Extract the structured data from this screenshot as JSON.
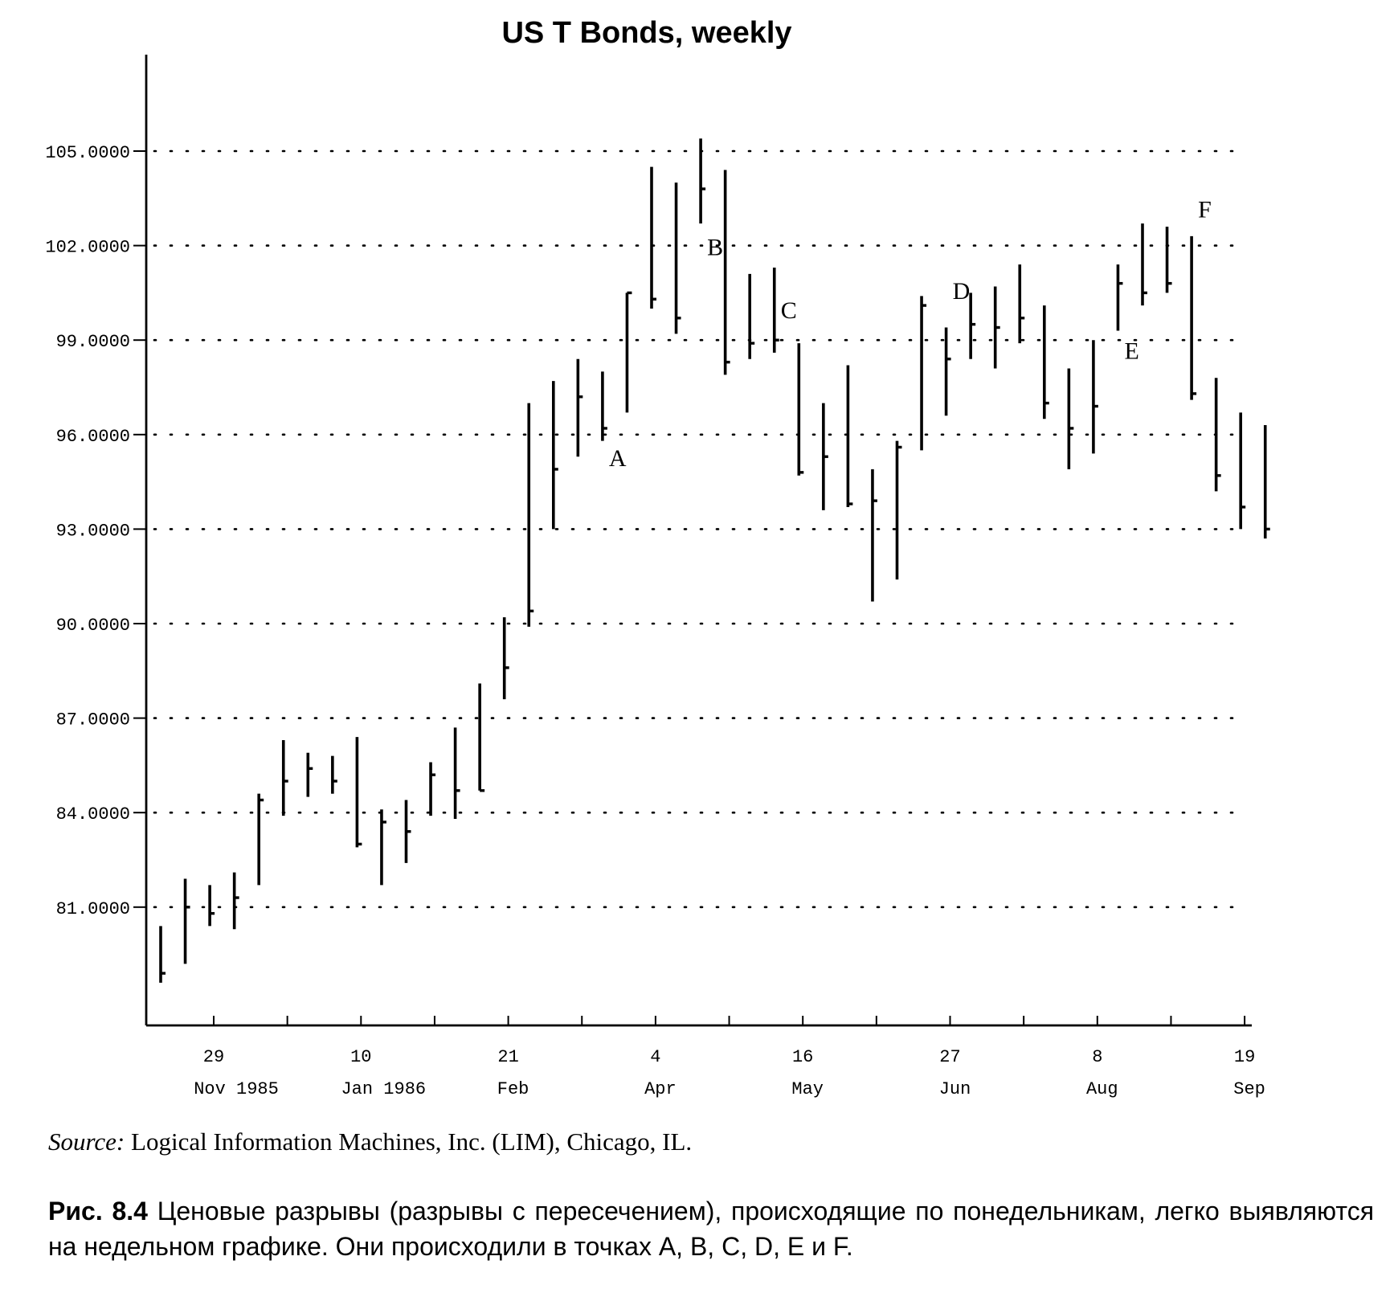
{
  "chart_data": {
    "type": "ohlc",
    "title": "US T Bonds, weekly",
    "ylim": [
      77.0,
      108.0
    ],
    "y_ticks": [
      81,
      84,
      87,
      90,
      93,
      96,
      99,
      102,
      105
    ],
    "y_tick_labels": [
      "81.0000",
      "84.0000",
      "87.0000",
      "90.0000",
      "93.0000",
      "96.0000",
      "99.0000",
      "102.0000",
      "105.0000"
    ],
    "x_tick_labels": [
      {
        "day": "29",
        "month": "Nov 1985"
      },
      {
        "day": "10",
        "month": "Jan 1986"
      },
      {
        "day": "21",
        "month": "Feb"
      },
      {
        "day": "4",
        "month": "Apr"
      },
      {
        "day": "16",
        "month": "May"
      },
      {
        "day": "27",
        "month": "Jun"
      },
      {
        "day": "8",
        "month": "Aug"
      },
      {
        "day": "19",
        "month": "Sep"
      }
    ],
    "grid": "horizontal dotted",
    "bars": [
      {
        "high": 80.4,
        "low": 78.6,
        "close": 78.9
      },
      {
        "high": 81.9,
        "low": 79.2,
        "close": 81.0
      },
      {
        "high": 81.7,
        "low": 80.4,
        "close": 80.8
      },
      {
        "high": 82.1,
        "low": 80.3,
        "close": 81.3
      },
      {
        "high": 84.6,
        "low": 81.7,
        "close": 84.4
      },
      {
        "high": 86.3,
        "low": 83.9,
        "close": 85.0
      },
      {
        "high": 85.9,
        "low": 84.5,
        "close": 85.4
      },
      {
        "high": 85.8,
        "low": 84.6,
        "close": 85.0
      },
      {
        "high": 86.4,
        "low": 82.9,
        "close": 83.0
      },
      {
        "high": 84.1,
        "low": 81.7,
        "close": 83.7
      },
      {
        "high": 84.4,
        "low": 82.4,
        "close": 83.4
      },
      {
        "high": 85.6,
        "low": 83.9,
        "close": 85.2
      },
      {
        "high": 86.7,
        "low": 83.8,
        "close": 84.7
      },
      {
        "high": 88.1,
        "low": 84.7,
        "close": 84.7
      },
      {
        "high": 90.2,
        "low": 87.6,
        "close": 88.6
      },
      {
        "high": 97.0,
        "low": 89.9,
        "close": 90.4
      },
      {
        "high": 97.7,
        "low": 93.0,
        "close": 94.9
      },
      {
        "high": 98.4,
        "low": 95.3,
        "close": 97.2
      },
      {
        "high": 98.0,
        "low": 95.8,
        "close": 96.2
      },
      {
        "high": 100.5,
        "low": 96.7,
        "close": 100.5
      },
      {
        "high": 104.5,
        "low": 100.0,
        "close": 100.3
      },
      {
        "high": 104.0,
        "low": 99.2,
        "close": 99.7
      },
      {
        "high": 105.4,
        "low": 102.7,
        "close": 103.8
      },
      {
        "high": 104.4,
        "low": 97.9,
        "close": 98.3
      },
      {
        "high": 101.1,
        "low": 98.4,
        "close": 98.9
      },
      {
        "high": 101.3,
        "low": 98.6,
        "close": 99.0
      },
      {
        "high": 98.9,
        "low": 94.7,
        "close": 94.8
      },
      {
        "high": 97.0,
        "low": 93.6,
        "close": 95.3
      },
      {
        "high": 98.2,
        "low": 93.7,
        "close": 93.8
      },
      {
        "high": 94.9,
        "low": 90.7,
        "close": 93.9
      },
      {
        "high": 95.8,
        "low": 91.4,
        "close": 95.6
      },
      {
        "high": 100.4,
        "low": 95.5,
        "close": 100.1
      },
      {
        "high": 99.4,
        "low": 96.6,
        "close": 98.4
      },
      {
        "high": 100.5,
        "low": 98.4,
        "close": 99.5
      },
      {
        "high": 100.7,
        "low": 98.1,
        "close": 99.4
      },
      {
        "high": 101.4,
        "low": 98.9,
        "close": 99.7
      },
      {
        "high": 100.1,
        "low": 96.5,
        "close": 97.0
      },
      {
        "high": 98.1,
        "low": 94.9,
        "close": 96.2
      },
      {
        "high": 99.0,
        "low": 95.4,
        "close": 96.9
      },
      {
        "high": 101.4,
        "low": 99.3,
        "close": 100.8
      },
      {
        "high": 102.7,
        "low": 100.1,
        "close": 100.5
      },
      {
        "high": 102.6,
        "low": 100.5,
        "close": 100.8
      },
      {
        "high": 102.3,
        "low": 97.1,
        "close": 97.3
      },
      {
        "high": 97.8,
        "low": 94.2,
        "close": 94.7
      },
      {
        "high": 96.7,
        "low": 93.0,
        "close": 93.7
      },
      {
        "high": 96.3,
        "low": 92.7,
        "close": 93.0
      }
    ],
    "annotations": [
      {
        "text": "A",
        "bar": 18,
        "y": 95.0
      },
      {
        "text": "B",
        "bar": 22,
        "y": 101.7
      },
      {
        "text": "C",
        "bar": 25,
        "y": 99.7
      },
      {
        "text": "D",
        "bar": 32,
        "y": 100.3
      },
      {
        "text": "E",
        "bar": 39,
        "y": 98.4
      },
      {
        "text": "F",
        "bar": 42,
        "y": 102.9
      }
    ]
  },
  "source": {
    "label": "Source:",
    "text": "Logical Information Machines, Inc. (LIM), Chicago, IL."
  },
  "caption": {
    "label": "Рис. 8.4",
    "text": "Ценовые разрывы (разрывы с пересечением), происходящие по понедельникам, легко выявляются на недельном графике. Они происходили в точках A, B, C, D, E и F."
  }
}
